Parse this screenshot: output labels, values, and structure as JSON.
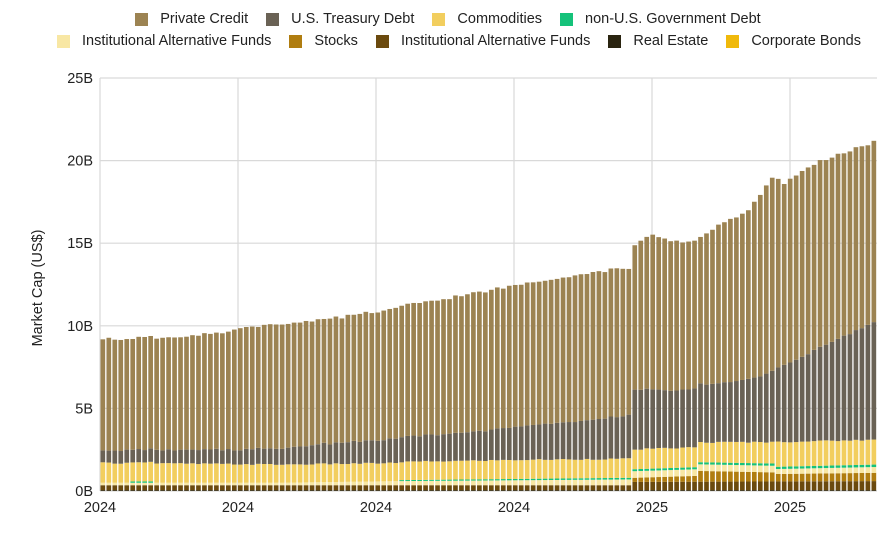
{
  "chart_data": {
    "type": "bar",
    "stacked": true,
    "title": "",
    "xlabel": "",
    "ylabel": "Market Cap (US$)",
    "ylim": [
      0,
      25
    ],
    "y_unit": "B",
    "y_ticks": [
      "0B",
      "5B",
      "10B",
      "15B",
      "20B",
      "25B"
    ],
    "x_ticks": [
      "2024",
      "2024",
      "2024",
      "2024",
      "2025",
      "2025"
    ],
    "grid": true,
    "legend_position": "top",
    "bar_count": 130,
    "legend": [
      {
        "name": "Private Credit",
        "color": "#9c8352"
      },
      {
        "name": "U.S. Treasury Debt",
        "color": "#6a6255"
      },
      {
        "name": "Commodities",
        "color": "#f2ce5e"
      },
      {
        "name": "non-U.S. Government Debt",
        "color": "#15c27a"
      },
      {
        "name": "Institutional Alternative Funds",
        "color": "#f8e7a4"
      },
      {
        "name": "Stocks",
        "color": "#b07d10"
      },
      {
        "name": "Institutional Alternative Funds",
        "color": "#6b4a0e"
      },
      {
        "name": "Real Estate",
        "color": "#2a2410"
      },
      {
        "name": "Corporate Bonds",
        "color": "#f0b90b"
      }
    ],
    "series_note": "Values in billions US$; anchor points [bar_index, value], linearly interpolated across the 130 bars. Stack order bottom-to-top.",
    "series": [
      {
        "name": "Real Estate",
        "color": "#2a2410",
        "anchors": [
          [
            0,
            0.05
          ],
          [
            129,
            0.05
          ]
        ]
      },
      {
        "name": "Institutional Alternative Funds",
        "color": "#6b4a0e",
        "anchors": [
          [
            0,
            0.3
          ],
          [
            88,
            0.3
          ],
          [
            89,
            0.5
          ],
          [
            129,
            0.55
          ]
        ]
      },
      {
        "name": "Stocks",
        "color": "#b07d10",
        "anchors": [
          [
            0,
            0.0
          ],
          [
            88,
            0.0
          ],
          [
            89,
            0.25
          ],
          [
            99,
            0.35
          ],
          [
            100,
            0.65
          ],
          [
            112,
            0.55
          ],
          [
            113,
            0.45
          ],
          [
            129,
            0.5
          ]
        ]
      },
      {
        "name": "Corporate Bonds",
        "color": "#f0b90b",
        "anchors": [
          [
            0,
            0.0
          ],
          [
            129,
            0.0
          ]
        ]
      },
      {
        "name": "Institutional Alternative Funds",
        "color": "#f8e7a4",
        "anchors": [
          [
            0,
            0.15
          ],
          [
            30,
            0.15
          ],
          [
            50,
            0.25
          ],
          [
            88,
            0.35
          ],
          [
            89,
            0.4
          ],
          [
            112,
            0.4
          ],
          [
            113,
            0.3
          ],
          [
            129,
            0.35
          ]
        ]
      },
      {
        "name": "non-U.S. Government Debt",
        "color": "#15c27a",
        "anchors": [
          [
            0,
            0.0
          ],
          [
            4,
            0.0
          ],
          [
            5,
            0.08
          ],
          [
            8,
            0.08
          ],
          [
            9,
            0.0
          ],
          [
            49,
            0.0
          ],
          [
            50,
            0.06
          ],
          [
            88,
            0.1
          ],
          [
            89,
            0.12
          ],
          [
            129,
            0.15
          ]
        ]
      },
      {
        "name": "Commodities",
        "color": "#f2ce5e",
        "anchors": [
          [
            0,
            1.2
          ],
          [
            30,
            1.1
          ],
          [
            50,
            1.1
          ],
          [
            70,
            1.15
          ],
          [
            88,
            1.15
          ],
          [
            89,
            1.2
          ],
          [
            100,
            1.2
          ],
          [
            112,
            1.3
          ],
          [
            113,
            1.5
          ],
          [
            129,
            1.5
          ]
        ]
      },
      {
        "name": "U.S. Treasury Debt",
        "color": "#6a6255",
        "anchors": [
          [
            0,
            0.75
          ],
          [
            20,
            0.85
          ],
          [
            30,
            1.0
          ],
          [
            40,
            1.3
          ],
          [
            60,
            1.7
          ],
          [
            75,
            2.2
          ],
          [
            88,
            2.6
          ],
          [
            89,
            3.6
          ],
          [
            96,
            3.5
          ],
          [
            105,
            3.6
          ],
          [
            110,
            4.0
          ],
          [
            115,
            4.8
          ],
          [
            122,
            6.0
          ],
          [
            129,
            7.1
          ]
        ]
      },
      {
        "name": "Private Credit",
        "color": "#9c8352",
        "anchors": [
          [
            0,
            6.75
          ],
          [
            10,
            6.8
          ],
          [
            20,
            7.0
          ],
          [
            22,
            7.3
          ],
          [
            30,
            7.5
          ],
          [
            40,
            7.6
          ],
          [
            50,
            7.9
          ],
          [
            60,
            8.3
          ],
          [
            70,
            8.6
          ],
          [
            80,
            8.9
          ],
          [
            87,
            8.95
          ],
          [
            89,
            8.8
          ],
          [
            92,
            9.3
          ],
          [
            96,
            9.0
          ],
          [
            100,
            8.9
          ],
          [
            103,
            9.6
          ],
          [
            108,
            10.2
          ],
          [
            112,
            11.7
          ],
          [
            114,
            11.0
          ],
          [
            118,
            11.3
          ],
          [
            122,
            11.2
          ],
          [
            126,
            11.0
          ],
          [
            129,
            10.9
          ]
        ]
      }
    ]
  }
}
